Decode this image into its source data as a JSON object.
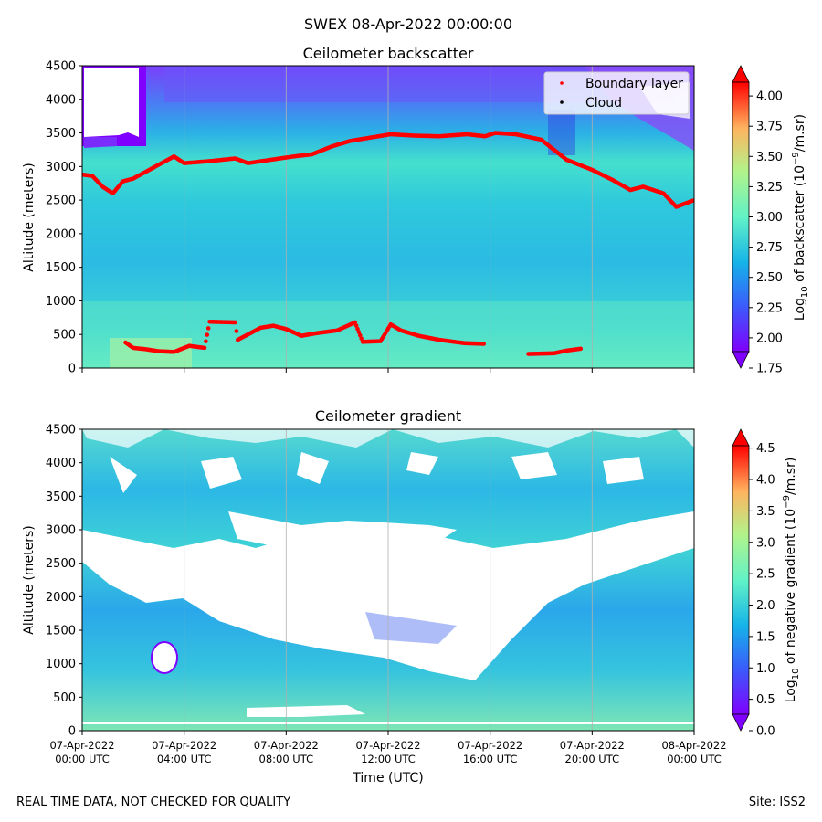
{
  "suptitle": "SWEX 08-Apr-2022 00:00:00",
  "footer": {
    "left": "REAL TIME DATA, NOT CHECKED FOR QUALITY",
    "right": "Site: ISS2"
  },
  "chart_data": [
    {
      "type": "heatmap",
      "title": "Ceilometer backscatter",
      "ylabel": "Altitude (meters)",
      "ylim": [
        0,
        4500
      ],
      "yticks": [
        0,
        500,
        1000,
        1500,
        2000,
        2500,
        3000,
        3500,
        4000,
        4500
      ],
      "xlim_hours": [
        0,
        24
      ],
      "colorbar": {
        "label": "Log10 of backscatter (10^-9/m.sr)",
        "range": [
          1.75,
          4.25
        ],
        "ticks": [
          "1.75",
          "2.00",
          "2.25",
          "2.50",
          "2.75",
          "3.00",
          "3.25",
          "3.50",
          "3.75",
          "4.00"
        ],
        "colormap": "rainbow"
      },
      "legend": [
        "Boundary layer",
        "Cloud"
      ],
      "legend_position": "top-right",
      "boundary_layer_upper": [
        [
          0,
          2880
        ],
        [
          0.4,
          2860
        ],
        [
          0.8,
          2700
        ],
        [
          1.2,
          2600
        ],
        [
          1.6,
          2780
        ],
        [
          2.0,
          2820
        ],
        [
          3.6,
          3150
        ],
        [
          4.0,
          3050
        ],
        [
          5.0,
          3080
        ],
        [
          6.0,
          3120
        ],
        [
          6.5,
          3050
        ],
        [
          8.3,
          3150
        ],
        [
          9.0,
          3180
        ],
        [
          9.8,
          3300
        ],
        [
          10.5,
          3380
        ],
        [
          12.1,
          3480
        ],
        [
          13.0,
          3460
        ],
        [
          14.0,
          3450
        ],
        [
          15.1,
          3480
        ],
        [
          15.8,
          3450
        ],
        [
          16.2,
          3500
        ],
        [
          17.0,
          3480
        ],
        [
          18.0,
          3400
        ],
        [
          19.0,
          3100
        ],
        [
          20.0,
          2950
        ],
        [
          20.8,
          2800
        ],
        [
          21.5,
          2650
        ],
        [
          22.0,
          2700
        ],
        [
          22.8,
          2600
        ],
        [
          23.3,
          2400
        ],
        [
          24.0,
          2500
        ]
      ],
      "boundary_layer_lower": [
        [
          1.7,
          380
        ],
        [
          2.0,
          300
        ],
        [
          2.5,
          280
        ],
        [
          3.0,
          250
        ],
        [
          3.6,
          240
        ],
        [
          4.2,
          330
        ],
        [
          4.8,
          300
        ],
        [
          5.0,
          690
        ],
        [
          6.0,
          680
        ],
        [
          6.1,
          420
        ],
        [
          7.0,
          600
        ],
        [
          7.5,
          630
        ],
        [
          8.0,
          580
        ],
        [
          8.6,
          480
        ],
        [
          9.2,
          520
        ],
        [
          10.0,
          560
        ],
        [
          10.7,
          680
        ],
        [
          11.0,
          390
        ],
        [
          11.7,
          400
        ],
        [
          12.1,
          650
        ],
        [
          12.5,
          560
        ],
        [
          13.2,
          480
        ],
        [
          14.0,
          420
        ],
        [
          15.0,
          370
        ],
        [
          15.8,
          360
        ]
      ],
      "boundary_layer_late": [
        [
          17.5,
          210
        ],
        [
          18.5,
          220
        ],
        [
          19.0,
          260
        ],
        [
          19.6,
          290
        ]
      ]
    },
    {
      "type": "heatmap",
      "title": "Ceilometer gradient",
      "ylabel": "Altitude (meters)",
      "xlabel": "Time (UTC)",
      "ylim": [
        0,
        4500
      ],
      "yticks": [
        0,
        500,
        1000,
        1500,
        2000,
        2500,
        3000,
        3500,
        4000,
        4500
      ],
      "xlim_hours": [
        0,
        24
      ],
      "xticks": [
        [
          "07-Apr-2022",
          "00:00 UTC"
        ],
        [
          "07-Apr-2022",
          "04:00 UTC"
        ],
        [
          "07-Apr-2022",
          "08:00 UTC"
        ],
        [
          "07-Apr-2022",
          "12:00 UTC"
        ],
        [
          "07-Apr-2022",
          "16:00 UTC"
        ],
        [
          "07-Apr-2022",
          "20:00 UTC"
        ],
        [
          "08-Apr-2022",
          "00:00 UTC"
        ]
      ],
      "colorbar": {
        "label": "Log10 of negative gradient (10^-9/m.sr)",
        "range": [
          0.0,
          4.8
        ],
        "ticks": [
          "0.0",
          "0.5",
          "1.0",
          "1.5",
          "2.0",
          "2.5",
          "3.0",
          "3.5",
          "4.0",
          "4.5"
        ],
        "colormap": "rainbow"
      }
    }
  ]
}
